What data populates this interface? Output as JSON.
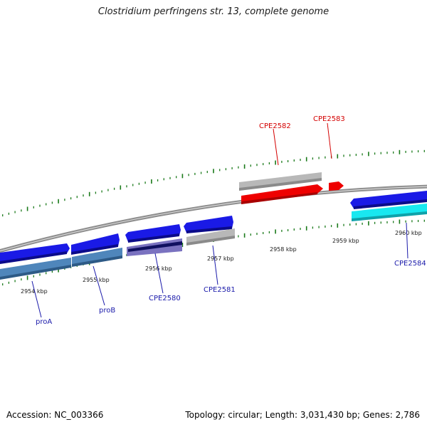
{
  "title": "Clostridium perfringens str. 13, complete genome",
  "footer": {
    "accession": "Accession: NC_003366",
    "summary": "Topology: circular; Length: 3,031,430 bp; Genes: 2,786"
  },
  "colors": {
    "backbone": "#8c8c8c",
    "tick": "#1a7a1a",
    "gene_blue": "#1a1ae6",
    "gene_steel": "#4f86bb",
    "gene_gray": "#b8b8b8",
    "gene_red": "#ee0000",
    "gene_cyan": "#19e8f0",
    "gene_navy": "#101060",
    "gene_purple": "#7a72c0",
    "label_blue": "#1a1aaa",
    "label_red": "#d40000"
  },
  "scale_labels": [
    "2954 kbp",
    "2955 kbp",
    "2956 kbp",
    "2957 kbp",
    "2958 kbp",
    "2959 kbp",
    "2960 kbp"
  ],
  "gene_labels": [
    {
      "name": "proA",
      "color": "label_blue"
    },
    {
      "name": "proB",
      "color": "label_blue"
    },
    {
      "name": "CPE2580",
      "color": "label_blue"
    },
    {
      "name": "CPE2581",
      "color": "label_blue"
    },
    {
      "name": "CPE2582",
      "color": "label_red"
    },
    {
      "name": "CPE2583",
      "color": "label_red"
    },
    {
      "name": "CPE2584",
      "color": "label_blue"
    }
  ]
}
